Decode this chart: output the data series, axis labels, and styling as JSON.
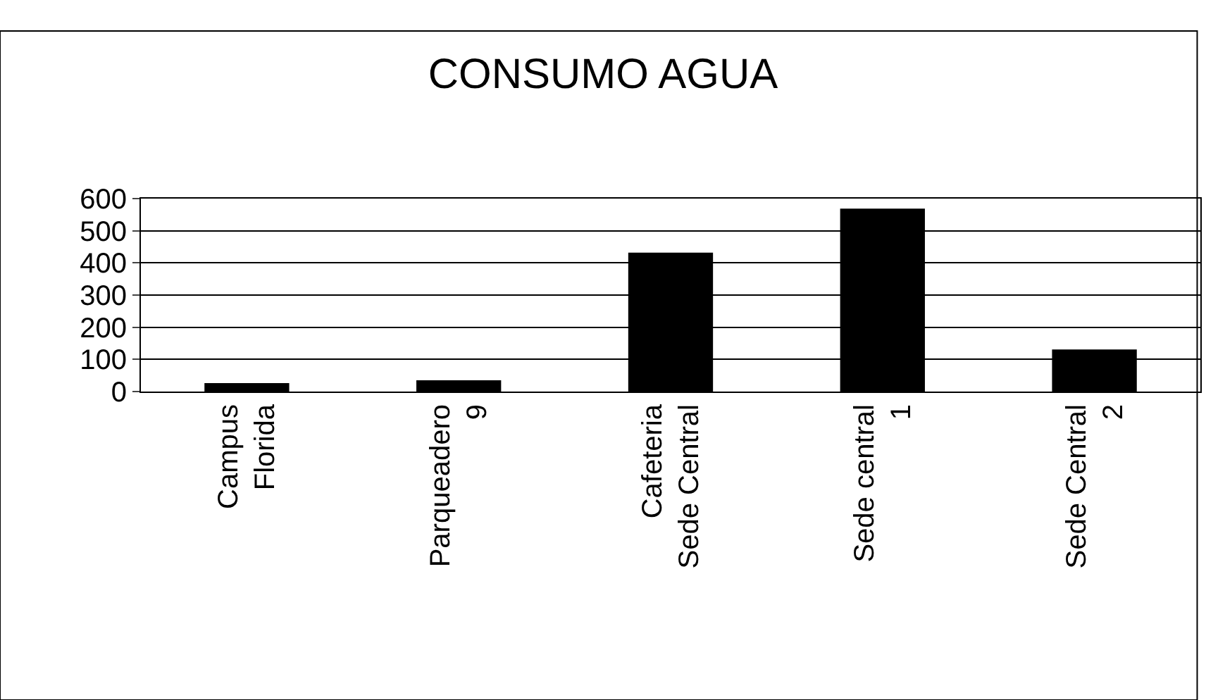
{
  "chart_data": {
    "type": "bar",
    "title": "CONSUMO AGUA",
    "categories": [
      "Campus Florida",
      "Parqueadero 9",
      "Cafeteria Sede Central",
      "Sede central 1",
      "Sede Central 2"
    ],
    "values": [
      26,
      35,
      432,
      569,
      131
    ],
    "color": "#000000",
    "ylim": [
      0,
      600
    ],
    "yticks": [
      0,
      100,
      200,
      300,
      400,
      500,
      600
    ],
    "grid": "y"
  }
}
